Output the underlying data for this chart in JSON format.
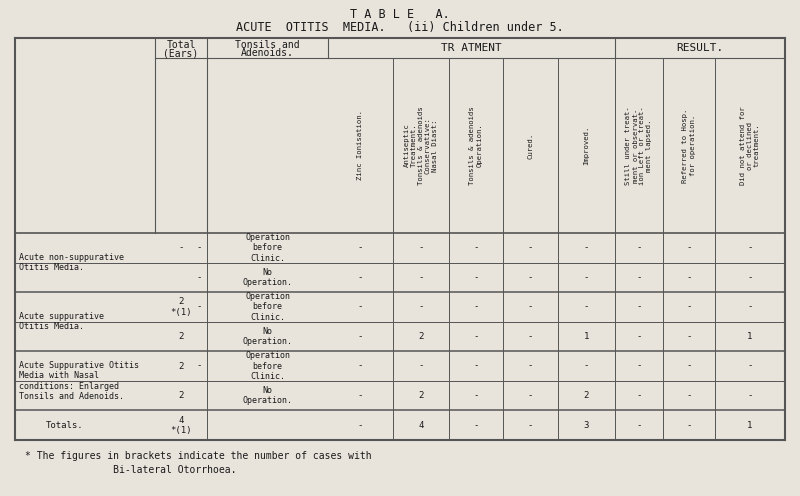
{
  "title_line1": "T A B L E   A.",
  "title_line2": "ACUTE  OTITIS  MEDIA.   (ii) Children under 5.",
  "bg_color": "#e8e4dc",
  "text_color": "#1a1a1a",
  "footnote_line1": "* The figures in brackets indicate the number of cases with",
  "footnote_line2": "               Bi-lateral Otorrhoea.",
  "group_labels": [
    "Acute non-suppurative\nOtitis Media.",
    "Acute suppurative\nOtitis Media.",
    "Acute Suppurative Otitis\nMedia with Nasal\nconditions: Enlarged\nTonsils and Adenoids."
  ],
  "sub_labels_first": [
    "Operation\nbefore\nClinic.",
    "Operation\nbefore\nClinic.",
    "Operation\nbefore\nClinic."
  ],
  "sub_labels_second": [
    "No\nOperation.",
    "No\nOperation.",
    "No\nOperation."
  ],
  "total_vals_first": [
    "-",
    "2\n*(1)",
    "2"
  ],
  "total_vals_second": [
    "-",
    "2",
    "2"
  ],
  "tonsils_first": [
    "-",
    "-",
    "-"
  ],
  "tonsils_second": [
    "-",
    "",
    ""
  ],
  "total_second_col": [
    "",
    "2",
    "2"
  ],
  "row_vals": [
    [
      "-",
      "-",
      "-",
      "-",
      "-",
      "-",
      "-",
      "-"
    ],
    [
      "-",
      "-",
      "-",
      "-",
      "-",
      "-",
      "-",
      "-"
    ],
    [
      "-",
      "-",
      "-",
      "-",
      "-",
      "-",
      "-",
      "-"
    ],
    [
      "-",
      "2",
      "-",
      "-",
      "1",
      "-",
      "-",
      "1"
    ],
    [
      "-",
      "-",
      "-",
      "-",
      "-",
      "-",
      "-",
      "-"
    ],
    [
      "-",
      "2",
      "-",
      "-",
      "2",
      "-",
      "-",
      "-"
    ]
  ],
  "totals_label": "Totals.",
  "totals_total": "4\n*(1)",
  "totals_vals": [
    "-",
    "4",
    "-",
    "-",
    "3",
    "-",
    "-",
    "1"
  ],
  "col_headers": [
    "Zinc Ionisation.",
    "Antiseptic\nTreatment.\nTonsils & adenoids\nConservative:\nNasal Diast:",
    "Tonsils & adenoids\nOperation.",
    "Cured.",
    "Improved.",
    "Still under treat-\nment or observat-\nion Left or treat-\nment lapsed.",
    "Referred to Hosp.\nfor operation.",
    "Did not attend for\nor declined\ntreatment."
  ]
}
